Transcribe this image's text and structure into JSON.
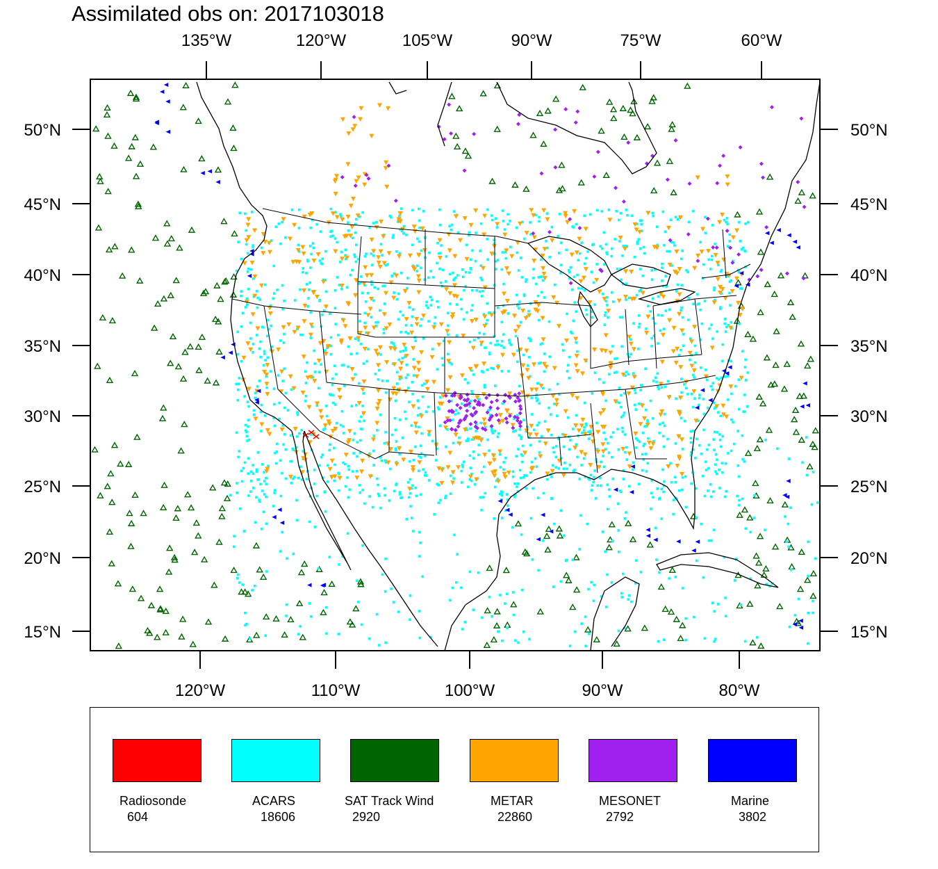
{
  "title": "Assimilated obs on: 2017103018",
  "top_axis": [
    "135°W",
    "120°W",
    "105°W",
    "90°W",
    "75°W",
    "60°W"
  ],
  "bottom_axis": [
    "120°W",
    "110°W",
    "100°W",
    "90°W",
    "80°W"
  ],
  "left_axis": [
    "50°N",
    "45°N",
    "40°N",
    "35°N",
    "30°N",
    "25°N",
    "20°N",
    "15°N"
  ],
  "right_axis": [
    "50°N",
    "45°N",
    "40°N",
    "35°N",
    "30°N",
    "25°N",
    "20°N",
    "15°N"
  ],
  "legend": [
    {
      "name": "Radiosonde",
      "count": "604",
      "color": "#ff0000"
    },
    {
      "name": "ACARS",
      "count": "18606",
      "color": "#00ffff"
    },
    {
      "name": "SAT Track Wind",
      "count": "2920",
      "color": "#006400"
    },
    {
      "name": "METAR",
      "count": "22860",
      "color": "#ffa500"
    },
    {
      "name": "MESONET",
      "count": "2792",
      "color": "#a020f0"
    },
    {
      "name": "Marine",
      "count": "3802",
      "color": "#0000ff"
    }
  ],
  "markers": {
    "satwind_icon": "open-triangle-up",
    "metar_icon": "triangle-down",
    "acars_icon": "square-dot",
    "mesonet_icon": "diamond",
    "marine_icon": "triangle-left"
  }
}
